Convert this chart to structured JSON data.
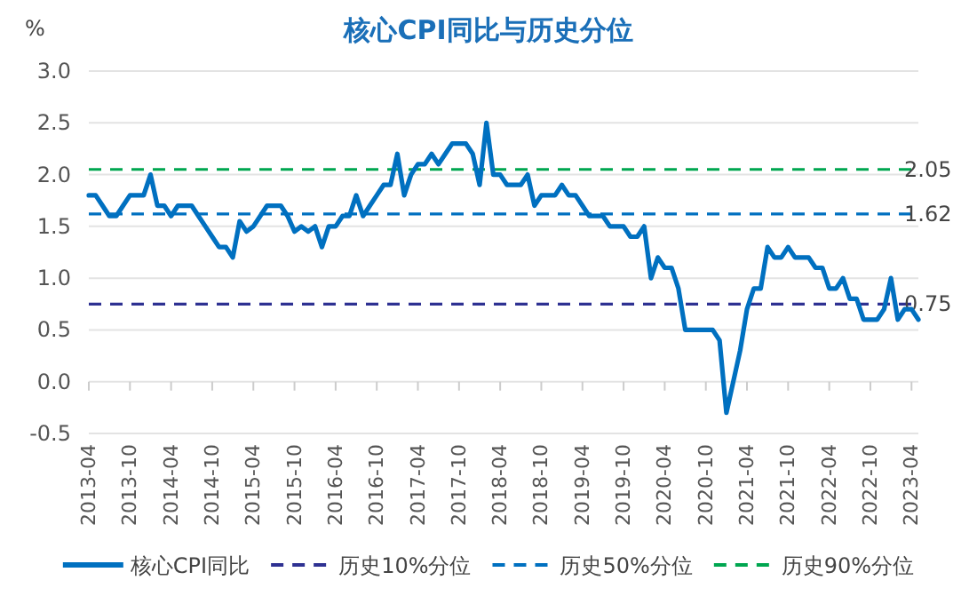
{
  "chart_data": {
    "type": "line",
    "title": "核心CPI同比与历史分位",
    "ylabel": "%",
    "x": [
      "2013-04",
      "2013-05",
      "2013-06",
      "2013-07",
      "2013-08",
      "2013-09",
      "2013-10",
      "2013-11",
      "2013-12",
      "2014-01",
      "2014-02",
      "2014-03",
      "2014-04",
      "2014-05",
      "2014-06",
      "2014-07",
      "2014-08",
      "2014-09",
      "2014-10",
      "2014-11",
      "2014-12",
      "2015-01",
      "2015-02",
      "2015-03",
      "2015-04",
      "2015-05",
      "2015-06",
      "2015-07",
      "2015-08",
      "2015-09",
      "2015-10",
      "2015-11",
      "2015-12",
      "2016-01",
      "2016-02",
      "2016-03",
      "2016-04",
      "2016-05",
      "2016-06",
      "2016-07",
      "2016-08",
      "2016-09",
      "2016-10",
      "2016-11",
      "2016-12",
      "2017-01",
      "2017-02",
      "2017-03",
      "2017-04",
      "2017-05",
      "2017-06",
      "2017-07",
      "2017-08",
      "2017-09",
      "2017-10",
      "2017-11",
      "2017-12",
      "2018-01",
      "2018-02",
      "2018-03",
      "2018-04",
      "2018-05",
      "2018-06",
      "2018-07",
      "2018-08",
      "2018-09",
      "2018-10",
      "2018-11",
      "2018-12",
      "2019-01",
      "2019-02",
      "2019-03",
      "2019-04",
      "2019-05",
      "2019-06",
      "2019-07",
      "2019-08",
      "2019-09",
      "2019-10",
      "2019-11",
      "2019-12",
      "2020-01",
      "2020-02",
      "2020-03",
      "2020-04",
      "2020-05",
      "2020-06",
      "2020-07",
      "2020-08",
      "2020-09",
      "2020-10",
      "2020-11",
      "2020-12",
      "2021-01",
      "2021-02",
      "2021-03",
      "2021-04",
      "2021-05",
      "2021-06",
      "2021-07",
      "2021-08",
      "2021-09",
      "2021-10",
      "2021-11",
      "2021-12",
      "2022-01",
      "2022-02",
      "2022-03",
      "2022-04",
      "2022-05",
      "2022-06",
      "2022-07",
      "2022-08",
      "2022-09",
      "2022-10",
      "2022-11",
      "2022-12",
      "2023-01",
      "2023-02",
      "2023-03",
      "2023-04",
      "2023-05"
    ],
    "series": [
      {
        "name": "核心CPI同比",
        "color": "#0070c0",
        "values": [
          1.8,
          1.8,
          1.7,
          1.6,
          1.6,
          1.7,
          1.8,
          1.8,
          1.8,
          2.0,
          1.7,
          1.7,
          1.6,
          1.7,
          1.7,
          1.7,
          1.6,
          1.5,
          1.4,
          1.3,
          1.3,
          1.2,
          1.55,
          1.45,
          1.5,
          1.6,
          1.7,
          1.7,
          1.7,
          1.6,
          1.45,
          1.5,
          1.45,
          1.5,
          1.3,
          1.5,
          1.5,
          1.6,
          1.6,
          1.8,
          1.6,
          1.7,
          1.8,
          1.9,
          1.9,
          2.2,
          1.8,
          2.0,
          2.1,
          2.1,
          2.2,
          2.1,
          2.2,
          2.3,
          2.3,
          2.3,
          2.2,
          1.9,
          2.5,
          2.0,
          2.0,
          1.9,
          1.9,
          1.9,
          2.0,
          1.7,
          1.8,
          1.8,
          1.8,
          1.9,
          1.8,
          1.8,
          1.7,
          1.6,
          1.6,
          1.6,
          1.5,
          1.5,
          1.5,
          1.4,
          1.4,
          1.5,
          1.0,
          1.2,
          1.1,
          1.1,
          0.9,
          0.5,
          0.5,
          0.5,
          0.5,
          0.5,
          0.4,
          -0.3,
          0.0,
          0.3,
          0.7,
          0.9,
          0.9,
          1.3,
          1.2,
          1.2,
          1.3,
          1.2,
          1.2,
          1.2,
          1.1,
          1.1,
          0.9,
          0.9,
          1.0,
          0.8,
          0.8,
          0.6,
          0.6,
          0.6,
          0.7,
          1.0,
          0.6,
          0.7,
          0.7,
          0.6
        ]
      }
    ],
    "ref_lines": [
      {
        "axis": "y",
        "value": 0.75,
        "label": "历史10%分位",
        "color": "#2e3192",
        "line_style": "dashed"
      },
      {
        "axis": "y",
        "value": 1.62,
        "label": "历史50%分位",
        "color": "#0070c0",
        "line_style": "dashed"
      },
      {
        "axis": "y",
        "value": 2.05,
        "label": "历史90%分位",
        "color": "#00a650",
        "line_style": "dashed"
      }
    ],
    "annotations": [
      {
        "text": "0.75",
        "x": "2023-05",
        "y": 0.75
      },
      {
        "text": "1.62",
        "x": "2023-05",
        "y": 1.62
      },
      {
        "text": "2.05",
        "x": "2023-05",
        "y": 2.05
      }
    ],
    "xlim": [
      "2013-04",
      "2023-05"
    ],
    "xticks": [
      "2013-04",
      "2013-10",
      "2014-04",
      "2014-10",
      "2015-04",
      "2015-10",
      "2016-04",
      "2016-10",
      "2017-04",
      "2017-10",
      "2018-04",
      "2018-10",
      "2019-04",
      "2019-10",
      "2020-04",
      "2020-10",
      "2021-04",
      "2021-10",
      "2022-04",
      "2022-10",
      "2023-04"
    ],
    "ylim": [
      -0.5,
      3.0
    ],
    "yticks": [
      {
        "value": -0.5,
        "label": "-0.5"
      },
      {
        "value": 0,
        "label": "0.0"
      },
      {
        "value": 0.5,
        "label": "0.5"
      },
      {
        "value": 1,
        "label": "1.0"
      },
      {
        "value": 1.5,
        "label": "1.5"
      },
      {
        "value": 2,
        "label": "2.0"
      },
      {
        "value": 2.5,
        "label": "2.5"
      },
      {
        "value": 3,
        "label": "3.0"
      }
    ],
    "grid": "y",
    "legend": "bottom",
    "marker": "none",
    "line_style": "solid"
  }
}
